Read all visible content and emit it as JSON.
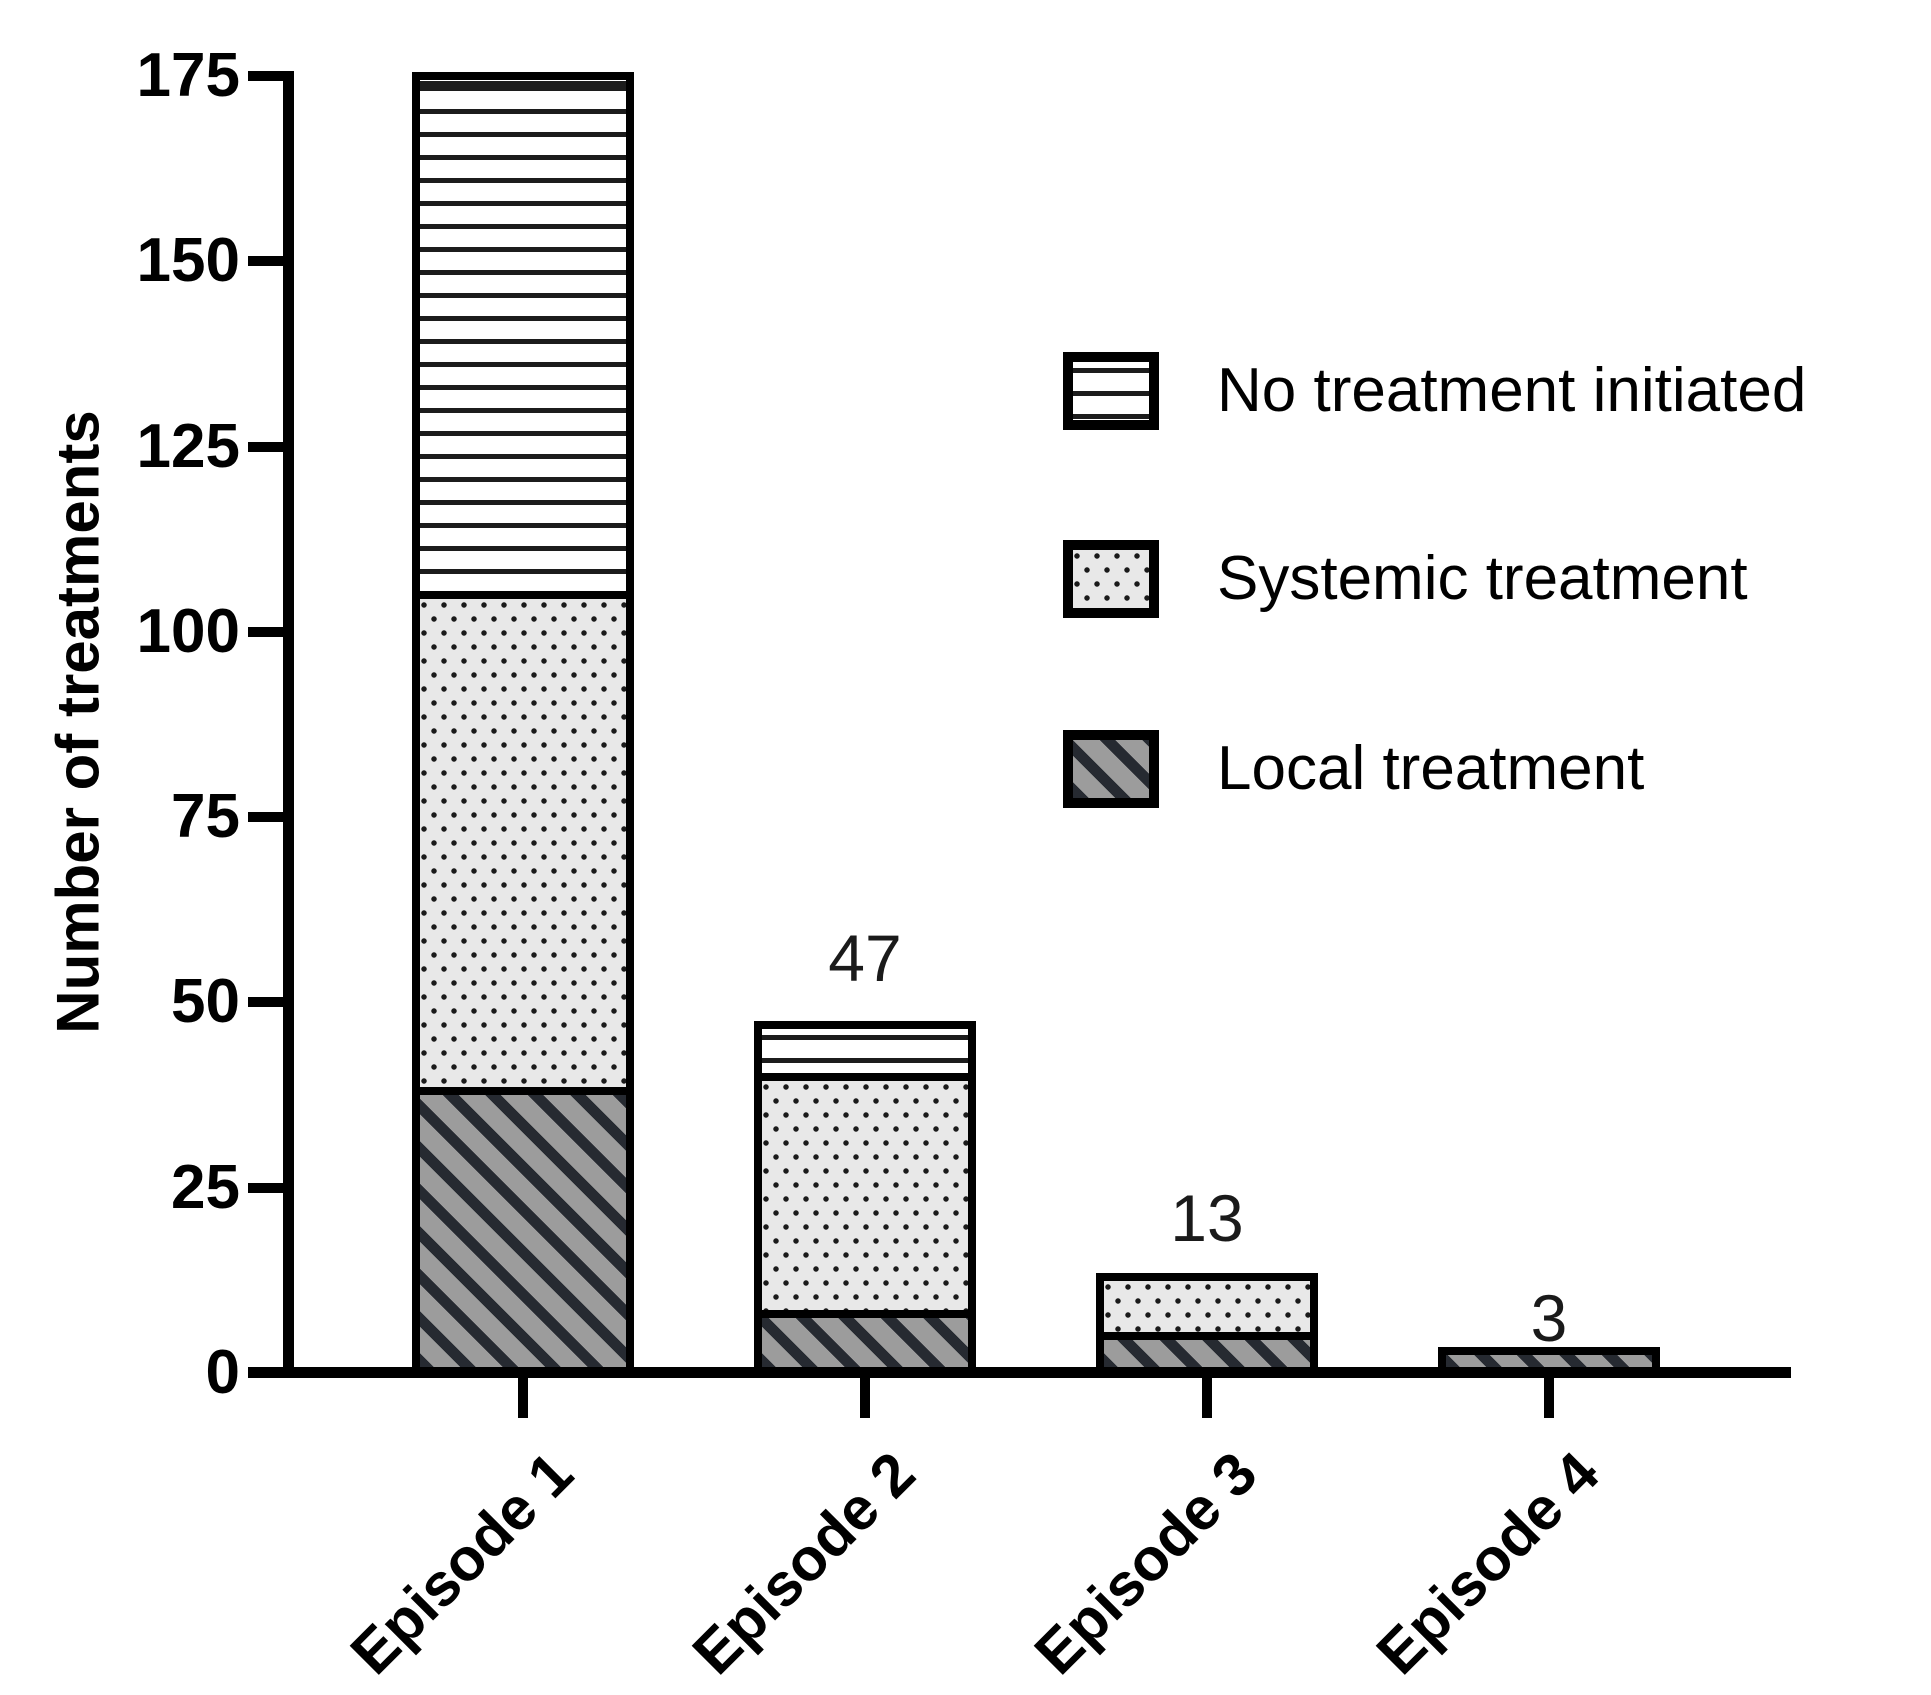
{
  "chart_data": {
    "type": "bar",
    "stacked": true,
    "ylabel": "Number of treatments",
    "xlabel": "",
    "categories": [
      "Episode 1",
      "Episode 2",
      "Episode 3",
      "Episode 4"
    ],
    "series": [
      {
        "name": "Local treatment",
        "pattern": "hatch",
        "values": [
          38,
          8,
          5,
          3
        ]
      },
      {
        "name": "Systemic treatment",
        "pattern": "dots",
        "values": [
          67,
          32,
          8,
          0
        ]
      },
      {
        "name": "No treatment initiated",
        "pattern": "hlines",
        "values": [
          70,
          7,
          0,
          0
        ]
      }
    ],
    "bar_totals": [
      175,
      47,
      13,
      3
    ],
    "bar_total_labels": [
      "",
      "47",
      "13",
      "3"
    ],
    "yticks": [
      "0",
      "25",
      "50",
      "75",
      "100",
      "125",
      "150",
      "175"
    ],
    "ylim": [
      0,
      175
    ],
    "grid": false,
    "legend_position": "upper-right",
    "legend": [
      {
        "label": "No treatment initiated",
        "pattern": "hlines"
      },
      {
        "label": "Systemic treatment",
        "pattern": "dots"
      },
      {
        "label": "Local treatment",
        "pattern": "hatch"
      }
    ],
    "colors": {
      "border": "#000000",
      "hatch_background": "#9c9c9c",
      "hatch_stripe": "#262a31",
      "dots_background": "#e8e8e8",
      "dot": "#1a1a1a",
      "lines_background": "#ffffff",
      "line": "#1c1c1c"
    }
  }
}
